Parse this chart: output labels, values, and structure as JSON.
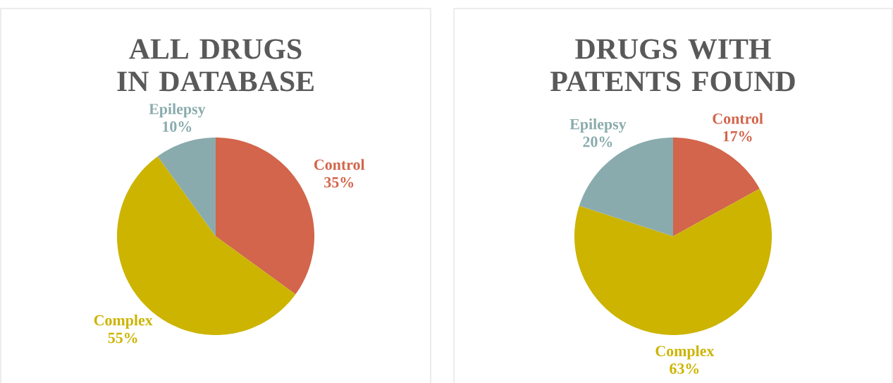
{
  "chart_data": [
    {
      "type": "pie",
      "title": "ALL DRUGS IN DATABASE",
      "categories": [
        "Control",
        "Complex",
        "Epilepsy"
      ],
      "values": [
        35,
        55,
        10
      ],
      "value_labels": [
        "35%",
        "55%",
        "10%"
      ],
      "colors": [
        "#d2654b",
        "#ccb400",
        "#8aabad"
      ]
    },
    {
      "type": "pie",
      "title": "DRUGS WITH PATENTS FOUND",
      "categories": [
        "Control",
        "Complex",
        "Epilepsy"
      ],
      "values": [
        17,
        63,
        20
      ],
      "value_labels": [
        "17%",
        "63%",
        "20%"
      ],
      "colors": [
        "#d2654b",
        "#ccb400",
        "#8aabad"
      ]
    }
  ]
}
